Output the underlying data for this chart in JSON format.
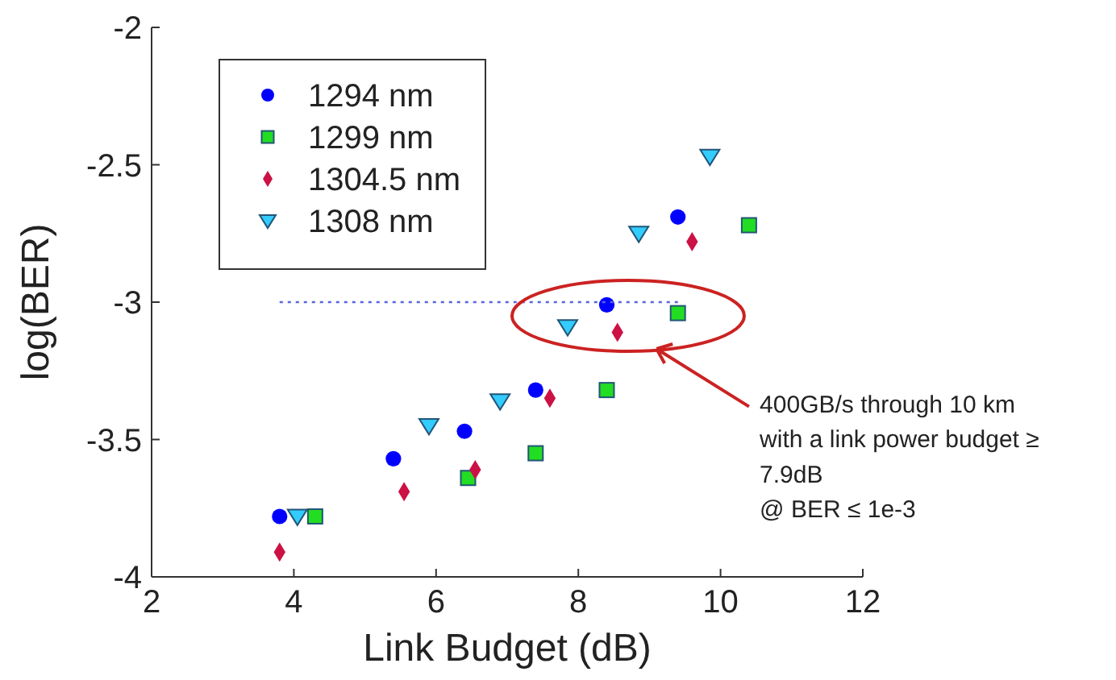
{
  "chart_data": {
    "type": "scatter",
    "xlabel": "Link Budget (dB)",
    "ylabel": "log(BER)",
    "xlim": [
      2,
      12
    ],
    "ylim": [
      -4,
      -2
    ],
    "xticks": [
      2,
      4,
      6,
      8,
      10,
      12
    ],
    "yticks": [
      -4,
      -3.5,
      -3,
      -2.5,
      -2
    ],
    "grid": false,
    "legend": "top left",
    "series": [
      {
        "name": "1294 nm",
        "color": "#0000ff",
        "marker": "circle",
        "x": [
          3.8,
          5.4,
          6.4,
          7.4,
          8.4,
          9.4
        ],
        "values": [
          -3.78,
          -3.57,
          -3.47,
          -3.32,
          -3.01,
          -2.69
        ]
      },
      {
        "name": "1299 nm",
        "color": "#22dd22",
        "marker": "square",
        "x": [
          4.3,
          6.45,
          7.4,
          8.4,
          9.4,
          10.4
        ],
        "values": [
          -3.78,
          -3.64,
          -3.55,
          -3.32,
          -3.04,
          -2.72
        ]
      },
      {
        "name": "1304.5 nm",
        "color": "#cc1144",
        "marker": "diamond",
        "x": [
          3.8,
          5.55,
          6.55,
          7.6,
          8.55,
          9.6
        ],
        "values": [
          -3.91,
          -3.69,
          -3.61,
          -3.35,
          -3.11,
          -2.78
        ]
      },
      {
        "name": "1308 nm",
        "color": "#33ccff",
        "marker": "triangle",
        "x": [
          4.05,
          5.9,
          6.9,
          7.85,
          8.85,
          9.85
        ],
        "values": [
          -3.78,
          -3.45,
          -3.36,
          -3.09,
          -2.75,
          -2.47
        ]
      },
      {
        "type": "line",
        "color": "#5566dd",
        "marker": "none",
        "line_style": "dotted",
        "x": [
          3.8,
          9.4
        ],
        "values": [
          -3,
          -3
        ]
      }
    ],
    "annotations": [
      "400GB/s through 10 km\nwith a link power budget ≥\n7.9dB\n@ BER ≤ 1e-3"
    ]
  }
}
